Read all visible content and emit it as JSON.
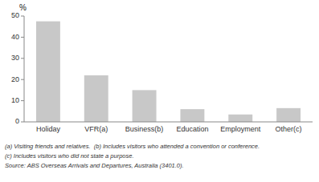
{
  "chart_data": {
    "type": "bar",
    "categories": [
      "Holiday",
      "VFR(a)",
      "Business(b)",
      "Education",
      "Employment",
      "Other(c)"
    ],
    "values": [
      47.5,
      22.0,
      15.0,
      6.0,
      3.5,
      6.5
    ],
    "color": "#c8c8c8",
    "ylim": [
      0,
      50
    ],
    "yticks": [
      0,
      10,
      20,
      30,
      40,
      50
    ],
    "ylabel": "%",
    "annotations": [
      "(a) Visiting friends and relatives.  (b) Includes visitors who attended a convention or conference.",
      "(c) Includes visitors who did not state a purpose.",
      "Source: ABS Overseas Arrivals and Departures, Australia (3401.0)."
    ],
    "grid": false
  }
}
